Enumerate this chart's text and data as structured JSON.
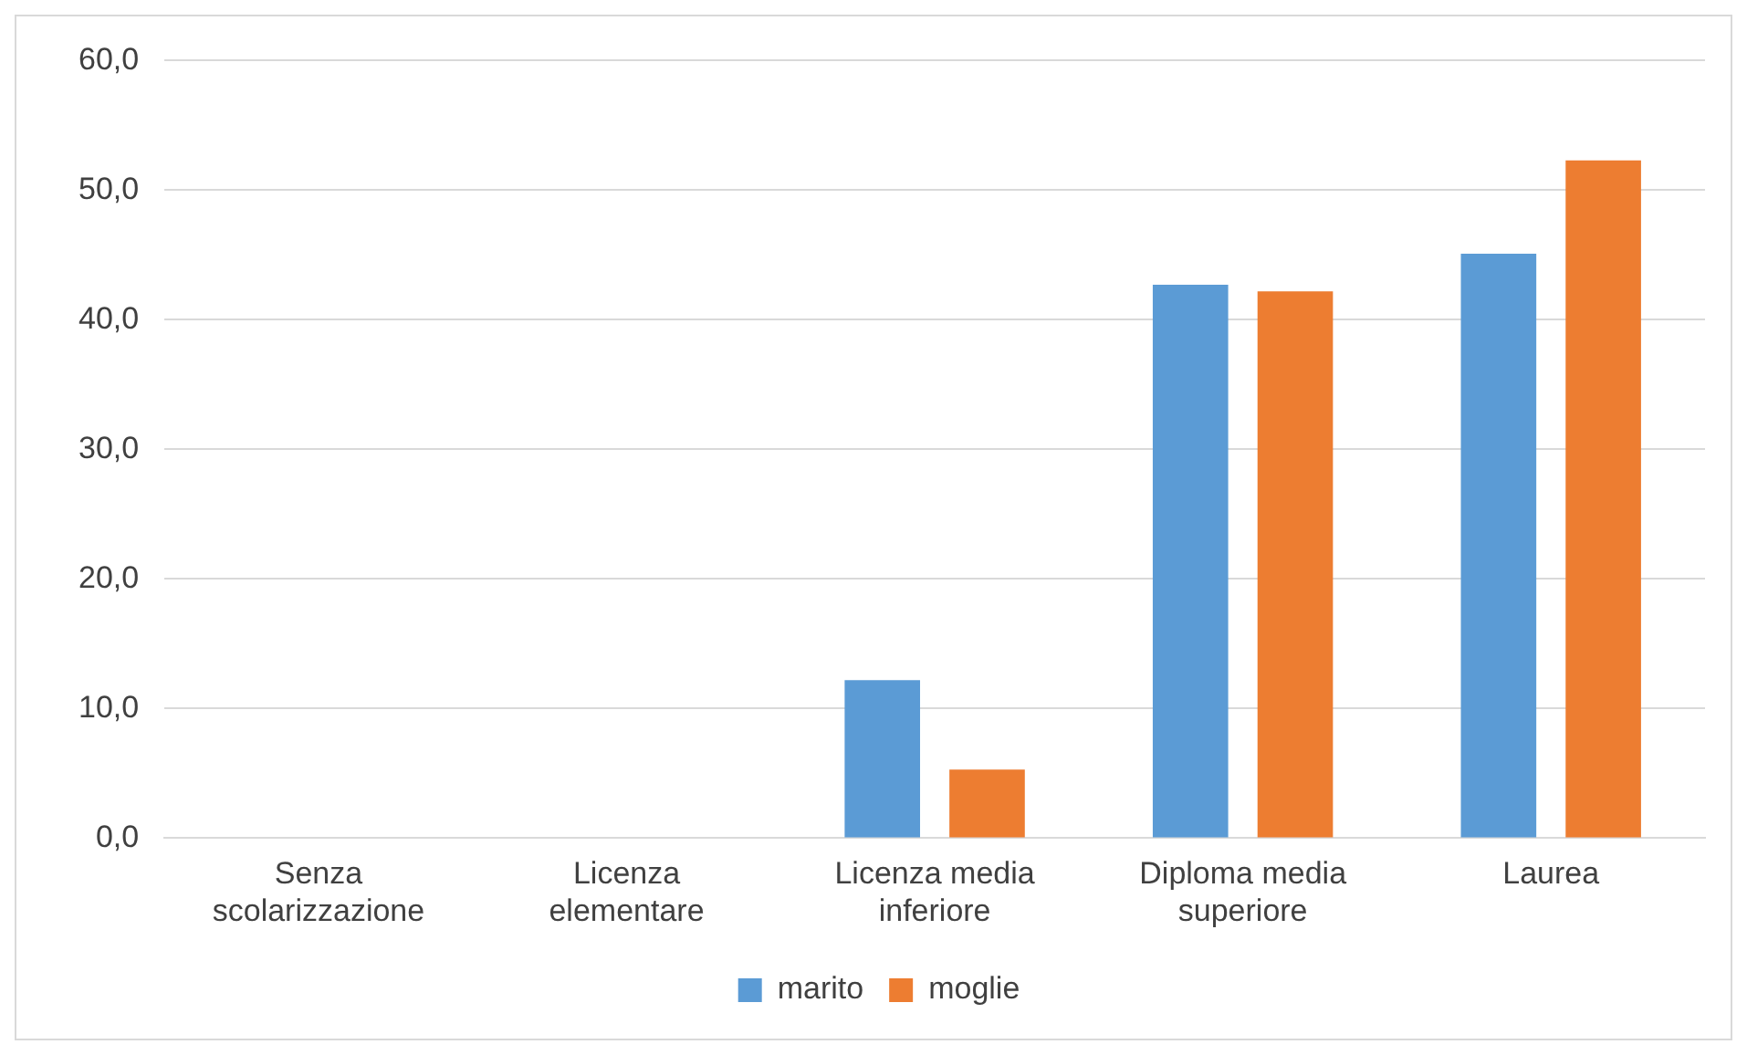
{
  "chart_data": {
    "type": "bar",
    "categories": [
      "Senza scolarizzazione",
      "Licenza elementare",
      "Licenza media inferiore",
      "Diploma media superiore",
      "Laurea"
    ],
    "series": [
      {
        "name": "marito",
        "color": "#5b9bd5",
        "values": [
          0,
          0,
          12.2,
          42.7,
          45.1
        ]
      },
      {
        "name": "moglie",
        "color": "#ed7d31",
        "values": [
          0,
          0,
          5.3,
          42.2,
          52.3
        ]
      }
    ],
    "ylim": [
      0,
      60
    ],
    "yticks": [
      {
        "value": 0,
        "label": "0,0"
      },
      {
        "value": 10,
        "label": "10,0"
      },
      {
        "value": 20,
        "label": "20,0"
      },
      {
        "value": 30,
        "label": "30,0"
      },
      {
        "value": 40,
        "label": "40,0"
      },
      {
        "value": 50,
        "label": "50,0"
      },
      {
        "value": 60,
        "label": "60,0"
      }
    ],
    "grid": "y",
    "legend": "bottom"
  }
}
